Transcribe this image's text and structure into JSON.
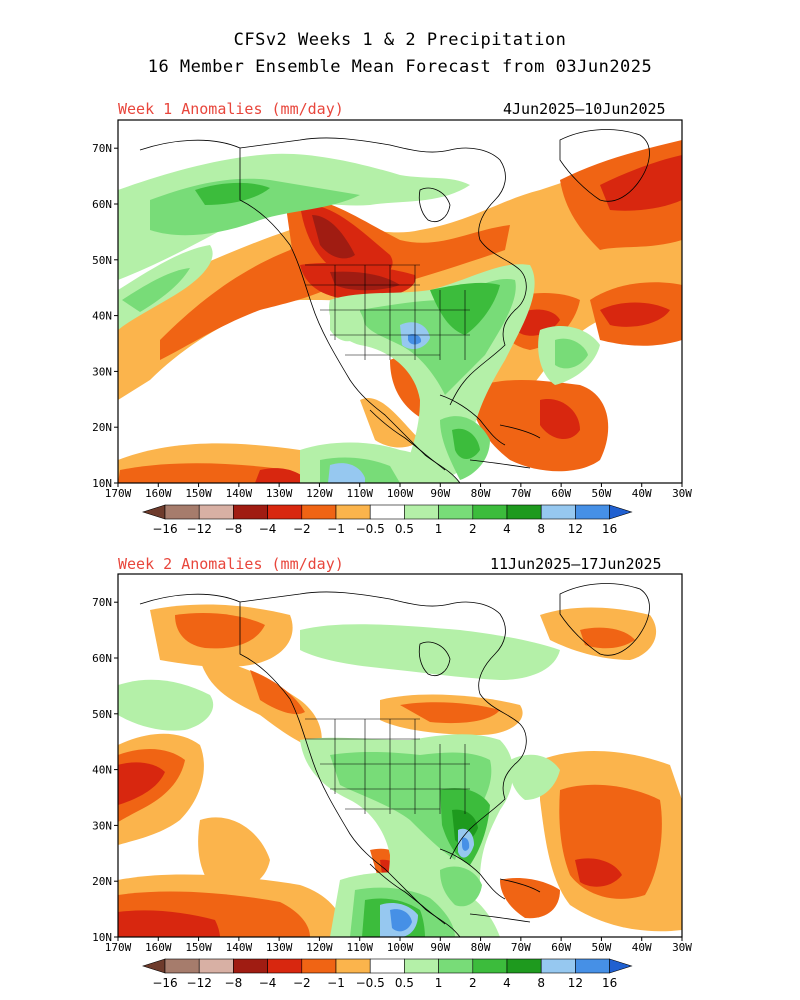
{
  "title_line1": "CFSv2 Weeks 1 & 2 Precipitation",
  "title_line2": "16 Member Ensemble Mean Forecast from 03Jun2025",
  "panels": [
    {
      "label": "Week 1 Anomalies (mm/day)",
      "dates": "4Jun2025–10Jun2025"
    },
    {
      "label": "Week 2 Anomalies (mm/day)",
      "dates": "11Jun2025–17Jun2025"
    }
  ],
  "lat_labels": [
    "10N",
    "20N",
    "30N",
    "40N",
    "50N",
    "60N",
    "70N"
  ],
  "lon_labels": [
    "170W",
    "160W",
    "150W",
    "140W",
    "130W",
    "120W",
    "110W",
    "100W",
    "90W",
    "80W",
    "70W",
    "60W",
    "50W",
    "40W",
    "30W"
  ],
  "colorbar": {
    "labels": [
      "−16",
      "−12",
      "−8",
      "−4",
      "−2",
      "−1",
      "−0.5",
      "0.5",
      "1",
      "2",
      "4",
      "8",
      "12",
      "16"
    ],
    "colors": [
      "#6e3b2c",
      "#a67c6c",
      "#d8b0a4",
      "#a01c12",
      "#d8270f",
      "#f06414",
      "#fbb44c",
      "#ffffff",
      "#b4f0a8",
      "#78dc78",
      "#3cbc3c",
      "#1e9a1e",
      "#96c8f0",
      "#4690e6",
      "#2060d0"
    ]
  },
  "colors": {
    "dry_light": "#fbb44c",
    "dry_mid": "#f06414",
    "dry_strong": "#d8270f",
    "dry_xstrong": "#a01c12",
    "wet_light": "#b4f0a8",
    "wet_mid": "#78dc78",
    "wet_strong": "#3cbc3c",
    "wet_xstrong": "#1e9a1e",
    "blue_light": "#96c8f0",
    "blue_mid": "#4690e6"
  }
}
